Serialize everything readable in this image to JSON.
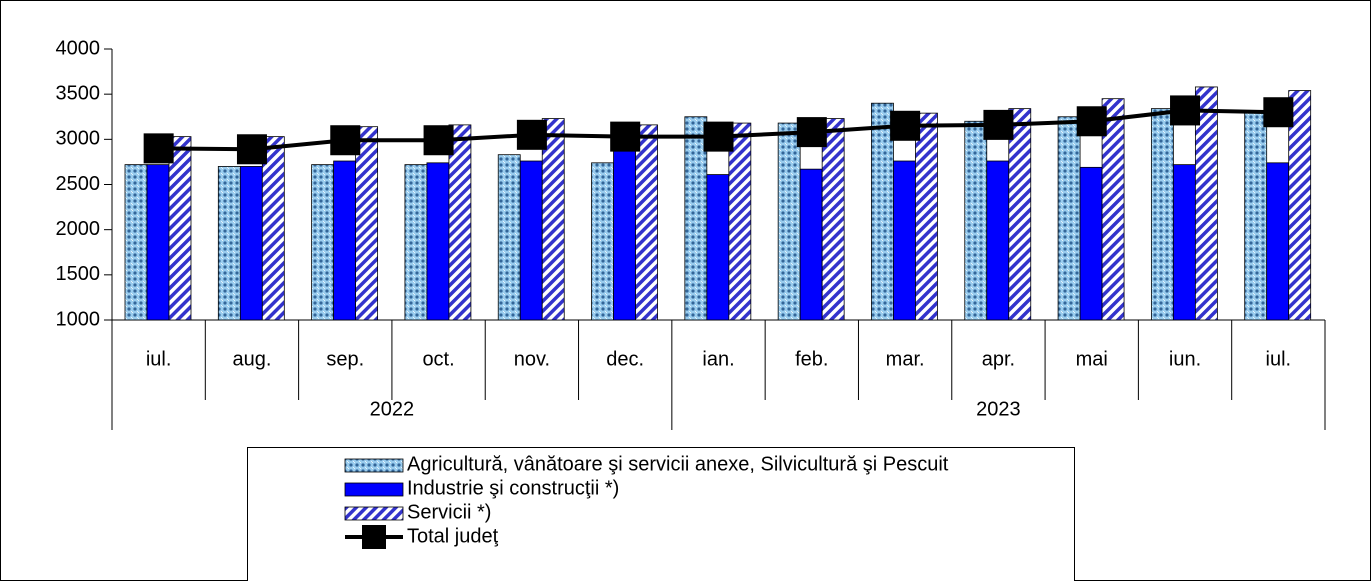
{
  "chart_data": {
    "type": "bar_line",
    "categories": [
      "iul.",
      "aug.",
      "sep.",
      "oct.",
      "nov.",
      "dec.",
      "ian.",
      "feb.",
      "mar.",
      "apr.",
      "mai",
      "iun.",
      "iul."
    ],
    "category_groups": [
      {
        "name": "2022",
        "size": 6
      },
      {
        "name": "2023",
        "size": 7
      }
    ],
    "series": [
      {
        "name": "Agricultură, vânătoare şi servicii anexe, Silvicultură şi Pescuit",
        "kind": "bar",
        "pattern": "dots",
        "color": "#99ccee",
        "values": [
          2720,
          2700,
          2720,
          2720,
          2830,
          2740,
          3250,
          3180,
          3400,
          3200,
          3250,
          3340,
          3300
        ]
      },
      {
        "name": "Industrie şi construcţii *)",
        "kind": "bar",
        "pattern": "solid",
        "color": "#0000ff",
        "values": [
          2720,
          2700,
          2760,
          2740,
          2760,
          2890,
          2610,
          2670,
          2760,
          2760,
          2690,
          2720,
          2740
        ]
      },
      {
        "name": "Servicii *)",
        "kind": "bar",
        "pattern": "hatch",
        "color": "#3333cc",
        "values": [
          3030,
          3030,
          3140,
          3160,
          3230,
          3160,
          3180,
          3230,
          3290,
          3340,
          3450,
          3580,
          3540
        ]
      },
      {
        "name": "Total judeţ",
        "kind": "line",
        "color": "#000000",
        "values": [
          2900,
          2890,
          2990,
          2990,
          3050,
          3030,
          3030,
          3080,
          3150,
          3160,
          3200,
          3320,
          3300
        ]
      }
    ],
    "ylim": [
      1000,
      4000
    ],
    "yticks": [
      1000,
      1500,
      2000,
      2500,
      3000,
      3500,
      4000
    ]
  }
}
